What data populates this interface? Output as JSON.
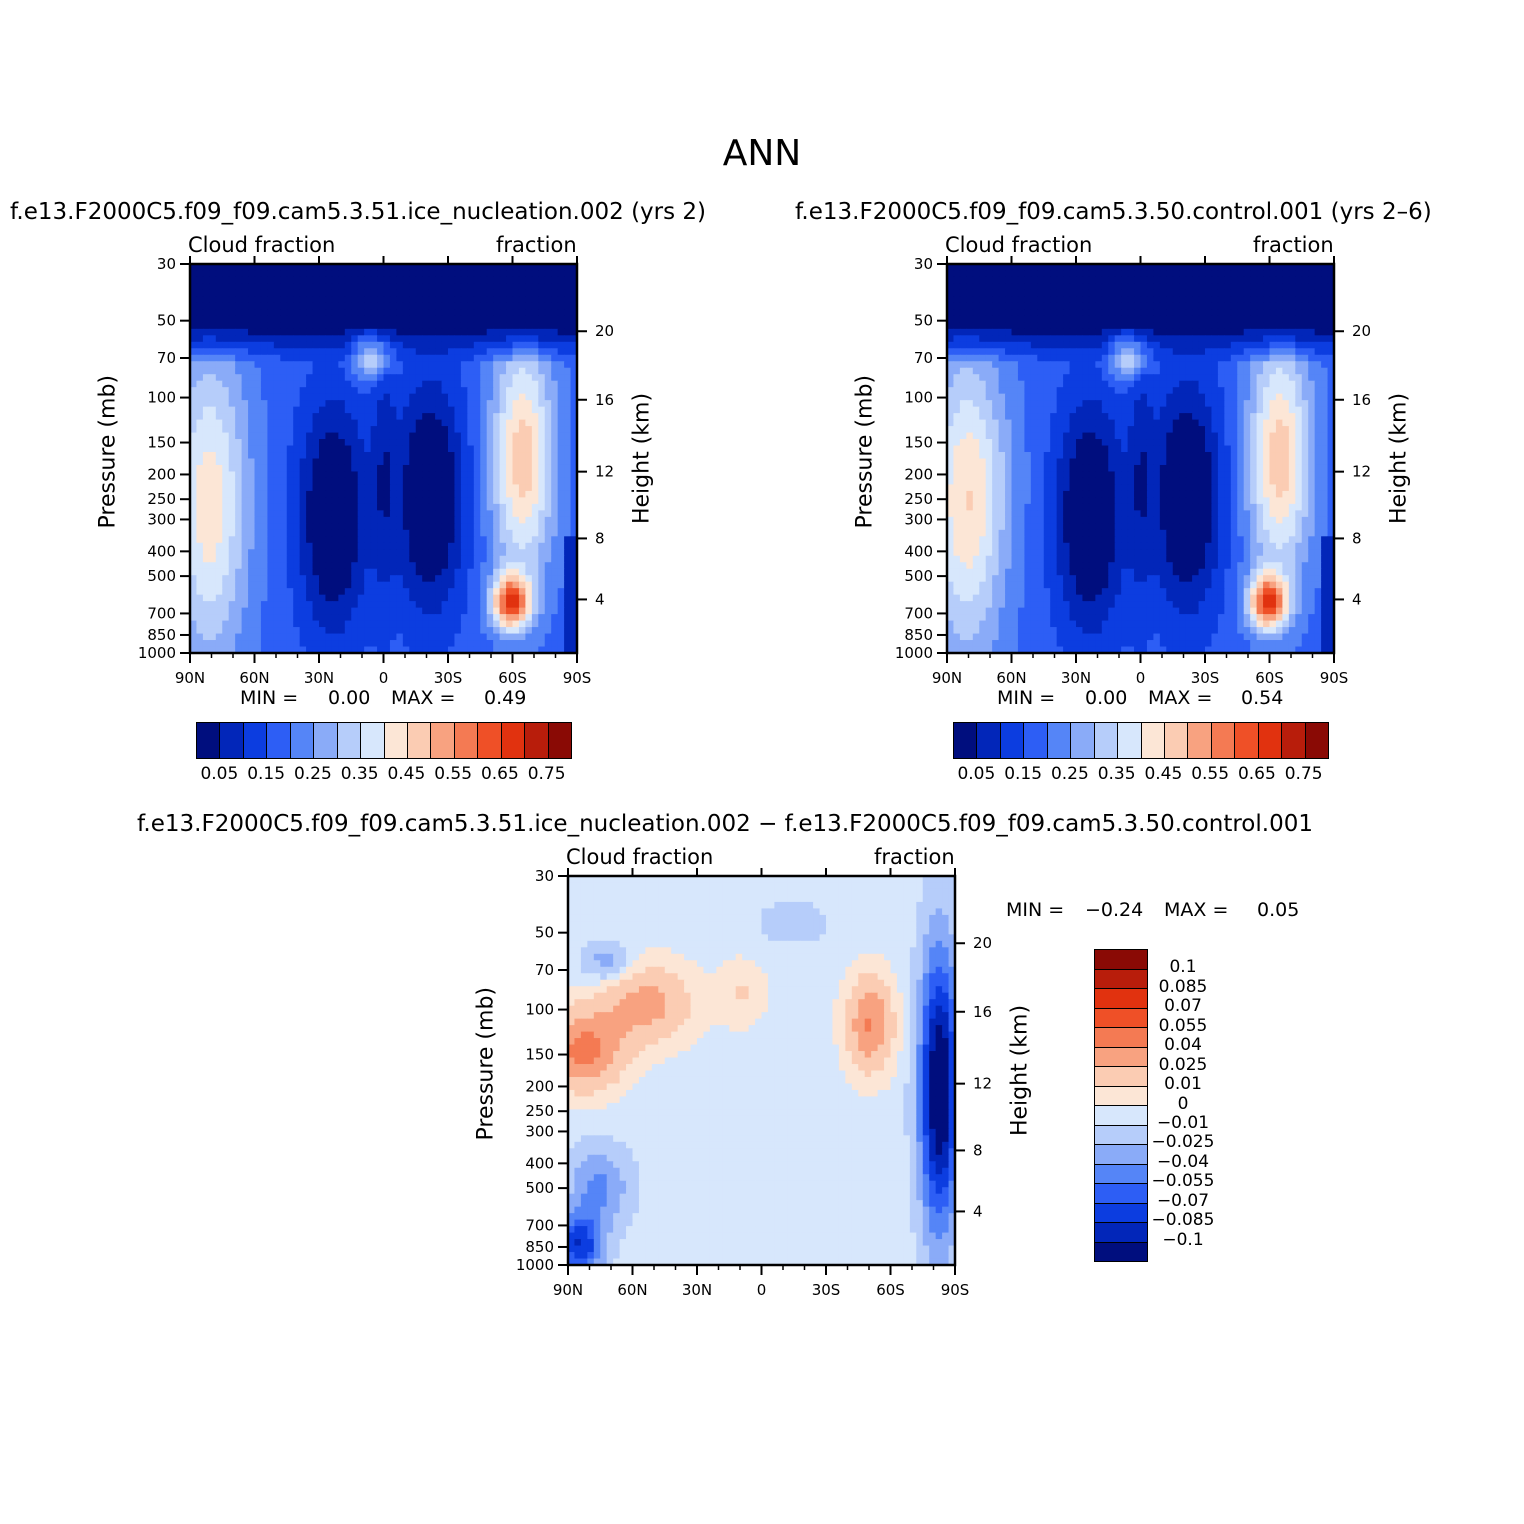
{
  "title": "ANN",
  "colors": {
    "abs_scale": [
      "#000e7e",
      "#0226b9",
      "#0c3de0",
      "#2d5ef5",
      "#5585f7",
      "#8aabf8",
      "#b6cdfa",
      "#d7e7fc",
      "#fce6d6",
      "#fbccb3",
      "#f8a280",
      "#f47a53",
      "#ef5027",
      "#e1320f",
      "#b81d0b",
      "#8a0a05"
    ],
    "diff_scale": [
      "#000e7e",
      "#0226b9",
      "#0c3de0",
      "#2d5ef5",
      "#5585f7",
      "#8aabf8",
      "#b6cdfa",
      "#d7e7fc",
      "#fce6d6",
      "#fbccb3",
      "#f8a280",
      "#f47a53",
      "#ef5027",
      "#e1320f",
      "#b81d0b",
      "#8a0a05"
    ]
  },
  "y_ticks": [
    "30",
    "50",
    "70",
    "100",
    "150",
    "200",
    "250",
    "300",
    "400",
    "500",
    "700",
    "850",
    "1000"
  ],
  "height_ticks": [
    "20",
    "16",
    "12",
    "8",
    "4"
  ],
  "x_ticks": [
    "90N",
    "60N",
    "30N",
    "0",
    "30S",
    "60S",
    "90S"
  ],
  "ylabel_left": "Pressure  (mb)",
  "ylabel_right": "Height  (km)",
  "panels": {
    "test": {
      "title": "f.e13.F2000C5.f09_f09.cam5.3.51.ice_nucleation.002 (yrs 2)",
      "left_label": "Cloud fraction",
      "right_label": "fraction",
      "min_text": "MIN =",
      "min_value": "0.00",
      "max_text": "MAX =",
      "max_value": "0.49"
    },
    "control": {
      "title": "f.e13.F2000C5.f09_f09.cam5.3.50.control.001 (yrs 2–6)",
      "left_label": "Cloud fraction",
      "right_label": "fraction",
      "min_text": "MIN =",
      "min_value": "0.00",
      "max_text": "MAX =",
      "max_value": "0.54"
    },
    "diff": {
      "title": "f.e13.F2000C5.f09_f09.cam5.3.51.ice_nucleation.002 − f.e13.F2000C5.f09_f09.cam5.3.50.control.001",
      "left_label": "Cloud fraction",
      "right_label": "fraction",
      "min_text": "MIN =",
      "min_value": "−0.24",
      "max_text": "MAX =",
      "max_value": "0.05"
    }
  },
  "colorbar_abs_labels": [
    "0.05",
    "0.15",
    "0.25",
    "0.35",
    "0.45",
    "0.55",
    "0.65",
    "0.75"
  ],
  "colorbar_diff_labels": [
    "0.1",
    "0.085",
    "0.07",
    "0.055",
    "0.04",
    "0.025",
    "0.01",
    "0",
    "−0.01",
    "−0.025",
    "−0.04",
    "−0.055",
    "−0.07",
    "−0.085",
    "−0.1"
  ],
  "chart_data": [
    {
      "type": "heatmap",
      "title": "f.e13.F2000C5.f09_f09.cam5.3.51.ice_nucleation.002 (yrs 2)",
      "variable": "Cloud fraction",
      "x_ticks": [
        "90N",
        "60N",
        "30N",
        "0",
        "30S",
        "60S",
        "90S"
      ],
      "y_ticks_mb": [
        30,
        50,
        70,
        100,
        150,
        200,
        250,
        300,
        400,
        500,
        700,
        850,
        1000
      ],
      "y_scale": "log",
      "ylim_mb": [
        1000,
        30
      ],
      "height_ticks_km": [
        20,
        16,
        12,
        8,
        4
      ],
      "levels": [
        0.05,
        0.1,
        0.15,
        0.2,
        0.25,
        0.3,
        0.35,
        0.4,
        0.45,
        0.5,
        0.55,
        0.6,
        0.65,
        0.7,
        0.75
      ],
      "min": 0.0,
      "max": 0.49
    },
    {
      "type": "heatmap",
      "title": "f.e13.F2000C5.f09_f09.cam5.3.50.control.001 (yrs 2–6)",
      "variable": "Cloud fraction",
      "x_ticks": [
        "90N",
        "60N",
        "30N",
        "0",
        "30S",
        "60S",
        "90S"
      ],
      "y_ticks_mb": [
        30,
        50,
        70,
        100,
        150,
        200,
        250,
        300,
        400,
        500,
        700,
        850,
        1000
      ],
      "y_scale": "log",
      "ylim_mb": [
        1000,
        30
      ],
      "height_ticks_km": [
        20,
        16,
        12,
        8,
        4
      ],
      "levels": [
        0.05,
        0.1,
        0.15,
        0.2,
        0.25,
        0.3,
        0.35,
        0.4,
        0.45,
        0.5,
        0.55,
        0.6,
        0.65,
        0.7,
        0.75
      ],
      "min": 0.0,
      "max": 0.54
    },
    {
      "type": "heatmap",
      "title": "f.e13.F2000C5.f09_f09.cam5.3.51.ice_nucleation.002 − f.e13.F2000C5.f09_f09.cam5.3.50.control.001",
      "variable": "Cloud fraction",
      "x_ticks": [
        "90N",
        "60N",
        "30N",
        "0",
        "30S",
        "60S",
        "90S"
      ],
      "y_ticks_mb": [
        30,
        50,
        70,
        100,
        150,
        200,
        250,
        300,
        400,
        500,
        700,
        850,
        1000
      ],
      "y_scale": "log",
      "ylim_mb": [
        1000,
        30
      ],
      "height_ticks_km": [
        20,
        16,
        12,
        8,
        4
      ],
      "levels": [
        -0.1,
        -0.085,
        -0.07,
        -0.055,
        -0.04,
        -0.025,
        -0.01,
        0,
        0.01,
        0.025,
        0.04,
        0.055,
        0.07,
        0.085,
        0.1
      ],
      "min": -0.24,
      "max": 0.05
    }
  ]
}
